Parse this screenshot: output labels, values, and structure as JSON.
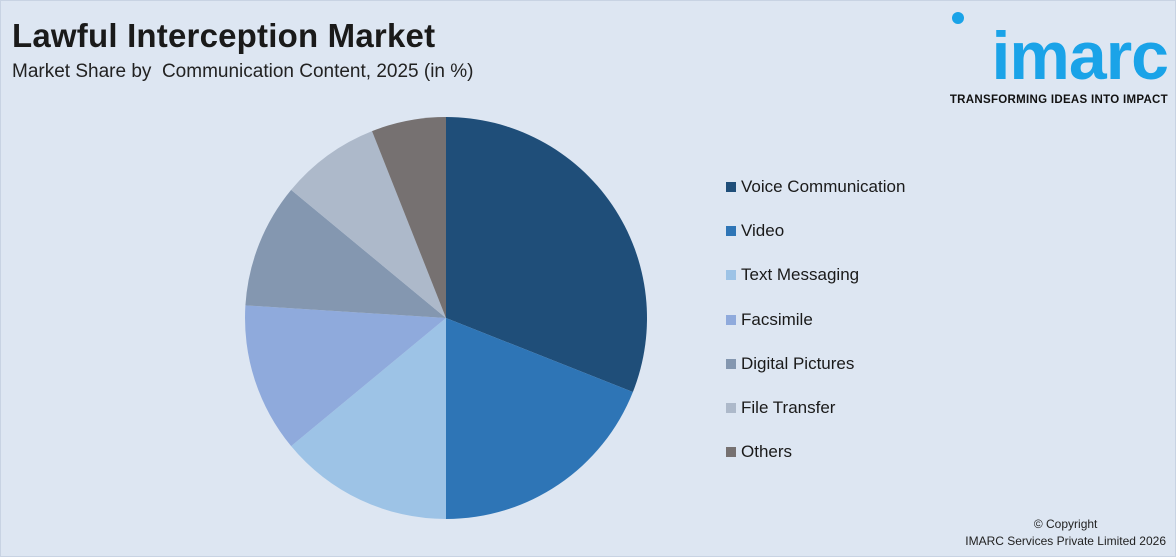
{
  "header": {
    "title": "Lawful Interception Market",
    "subtitle": "Market Share by  Communication Content, 2025 (in %)"
  },
  "logo": {
    "wordmark": "imarc",
    "tagline": "TRANSFORMING IDEAS INTO IMPACT",
    "color": "#1aa3e8"
  },
  "footer": {
    "copyright": "© Copyright",
    "company": "IMARC Services Private Limited 2026"
  },
  "chart_data": {
    "type": "pie",
    "title": "Lawful Interception Market",
    "subtitle": "Market Share by  Communication Content, 2025 (in %)",
    "legend_position": "right",
    "start_angle": "12 o'clock",
    "direction": "clockwise",
    "slices": [
      {
        "label": "Voice Communication",
        "value": 31,
        "color": "#1f4e79"
      },
      {
        "label": "Video",
        "value": 19,
        "color": "#2e75b6"
      },
      {
        "label": "Text Messaging",
        "value": 14,
        "color": "#9dc3e6"
      },
      {
        "label": "Facsimile",
        "value": 12,
        "color": "#8faadc"
      },
      {
        "label": "Digital Pictures",
        "value": 10,
        "color": "#8497b0"
      },
      {
        "label": "File Transfer",
        "value": 8,
        "color": "#adb9ca"
      },
      {
        "label": "Others",
        "value": 6,
        "color": "#767171"
      }
    ]
  }
}
